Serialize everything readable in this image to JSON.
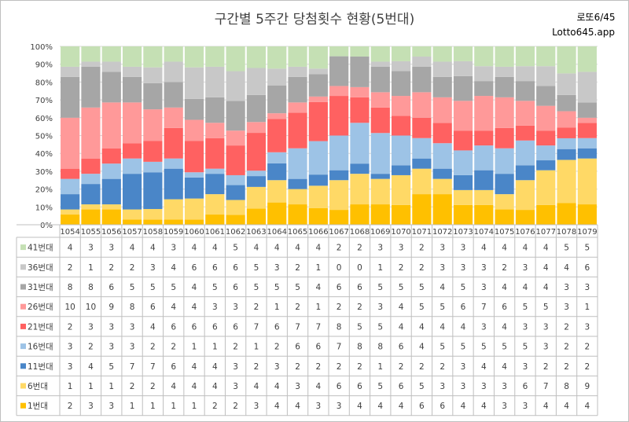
{
  "header": {
    "title": "구간별 5주간 당첨횟수 현황(5번대)",
    "brand_line1": "로또6/45",
    "brand_line2": "Lotto645.app"
  },
  "chart_data": {
    "type": "bar",
    "stacked": "percent",
    "title": "구간별 5주간 당첨횟수 현황(5번대)",
    "categories": [
      "1054",
      "1055",
      "1056",
      "1057",
      "1058",
      "1059",
      "1060",
      "1061",
      "1062",
      "1063",
      "1064",
      "1065",
      "1066",
      "1067",
      "1068",
      "1069",
      "1070",
      "1071",
      "1072",
      "1073",
      "1074",
      "1075",
      "1076",
      "1077",
      "1078",
      "1079"
    ],
    "y_ticks": [
      "0%",
      "10%",
      "20%",
      "30%",
      "40%",
      "50%",
      "60%",
      "70%",
      "80%",
      "90%",
      "100%"
    ],
    "ylim": [
      0,
      100
    ],
    "grid": true,
    "legend": "table-left",
    "series": [
      {
        "name": "1번대",
        "color": "#ffc000",
        "values": [
          2,
          3,
          3,
          1,
          1,
          1,
          1,
          2,
          2,
          3,
          4,
          4,
          3,
          3,
          4,
          4,
          4,
          6,
          6,
          4,
          4,
          3,
          3,
          4,
          4,
          4
        ]
      },
      {
        "name": "6번대",
        "color": "#ffd966",
        "values": [
          1,
          1,
          1,
          2,
          2,
          4,
          4,
          4,
          3,
          4,
          4,
          3,
          4,
          6,
          6,
          5,
          6,
          5,
          3,
          3,
          3,
          3,
          6,
          7,
          8,
          9
        ]
      },
      {
        "name": "11번대",
        "color": "#4a86c8",
        "values": [
          3,
          4,
          5,
          7,
          7,
          6,
          4,
          4,
          3,
          2,
          3,
          2,
          2,
          2,
          2,
          1,
          2,
          2,
          2,
          3,
          4,
          4,
          3,
          2,
          2,
          2
        ]
      },
      {
        "name": "16번대",
        "color": "#9dc3e6",
        "values": [
          3,
          2,
          3,
          3,
          2,
          2,
          1,
          1,
          2,
          1,
          2,
          6,
          6,
          7,
          8,
          8,
          6,
          4,
          5,
          5,
          5,
          5,
          5,
          3,
          2,
          2
        ]
      },
      {
        "name": "21번대",
        "color": "#ff6161",
        "values": [
          2,
          3,
          3,
          3,
          4,
          6,
          6,
          6,
          6,
          7,
          6,
          7,
          7,
          8,
          5,
          5,
          4,
          4,
          4,
          4,
          3,
          4,
          3,
          3,
          2,
          3
        ]
      },
      {
        "name": "26번대",
        "color": "#ff9999",
        "values": [
          10,
          10,
          9,
          8,
          6,
          4,
          4,
          3,
          3,
          2,
          1,
          2,
          1,
          2,
          2,
          3,
          4,
          5,
          5,
          6,
          7,
          6,
          5,
          5,
          3,
          1
        ]
      },
      {
        "name": "31번대",
        "color": "#a6a6a6",
        "values": [
          8,
          8,
          6,
          5,
          5,
          5,
          4,
          5,
          6,
          5,
          5,
          5,
          4,
          6,
          6,
          5,
          5,
          5,
          4,
          5,
          3,
          4,
          4,
          4,
          3,
          3
        ]
      },
      {
        "name": "36번대",
        "color": "#c8c8c8",
        "values": [
          2,
          1,
          2,
          2,
          3,
          4,
          6,
          6,
          6,
          5,
          3,
          2,
          1,
          0,
          0,
          1,
          2,
          2,
          3,
          3,
          3,
          2,
          3,
          4,
          4,
          6
        ]
      },
      {
        "name": "41번대",
        "color": "#c5e0b4",
        "values": [
          4,
          3,
          3,
          4,
          4,
          3,
          4,
          4,
          5,
          4,
          4,
          4,
          4,
          2,
          2,
          3,
          3,
          2,
          3,
          3,
          4,
          4,
          4,
          4,
          5,
          5
        ]
      }
    ]
  }
}
